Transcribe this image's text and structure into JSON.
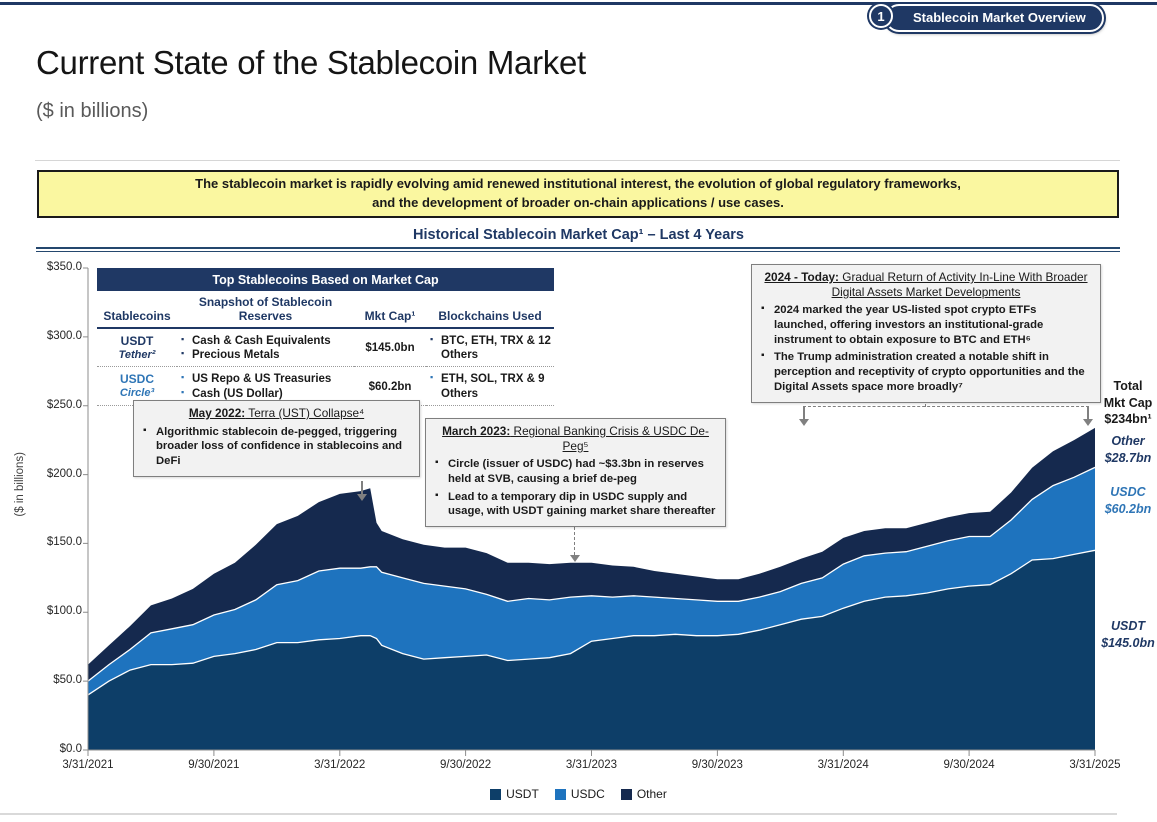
{
  "badge": {
    "number": "1",
    "label": "Stablecoin Market Overview"
  },
  "header": {
    "title": "Current State of the Stablecoin Market",
    "subtitle": "($ in billions)"
  },
  "highlight": {
    "line1": "The stablecoin market is rapidly evolving amid renewed institutional interest, the evolution of global regulatory frameworks,",
    "line2": "and the development of broader on-chain applications / use cases."
  },
  "chart_header": {
    "title": "Historical Stablecoin Market Cap¹ – Last 4 Years"
  },
  "table": {
    "title": "Top Stablecoins Based on Market Cap",
    "columns": [
      "Stablecoins",
      "Snapshot of Stablecoin Reserves",
      "Mkt Cap¹",
      "Blockchains Used"
    ],
    "rows": [
      {
        "name": "USDT",
        "issuer": "Tether²",
        "reserves": [
          "Cash & Cash Equivalents",
          "Precious Metals"
        ],
        "mkt_cap": "$145.0bn",
        "blockchains": "BTC, ETH, TRX & 12 Others"
      },
      {
        "name": "USDC",
        "issuer": "Circle³",
        "reserves": [
          "US Repo & US Treasuries",
          "Cash (US Dollar)"
        ],
        "mkt_cap": "$60.2bn",
        "blockchains": "ETH, SOL, TRX & 9 Others"
      }
    ]
  },
  "annotations": {
    "may2022": {
      "title_bold": "May 2022:",
      "title_rest": " Terra (UST) Collapse⁴",
      "bullets": [
        "Algorithmic stablecoin de-pegged, triggering broader loss of confidence in stablecoins and DeFi"
      ]
    },
    "march2023": {
      "title_bold": "March 2023:",
      "title_rest": " Regional Banking Crisis & USDC De-Peg⁵",
      "bullets": [
        "Circle (issuer of USDC) had ~$3.3bn in reserves held at SVB, causing a brief de-peg",
        "Lead to a temporary dip in USDC supply and usage, with USDT gaining market share thereafter"
      ]
    },
    "today2024": {
      "title_bold": "2024 - Today:",
      "title_rest": " Gradual Return of Activity In-Line With Broader Digital Assets Market Developments",
      "bullets": [
        "2024 marked the year US-listed spot crypto ETFs launched, offering investors an institutional-grade instrument to obtain exposure to BTC and ETH⁶",
        "The Trump administration created a notable shift in perception and receptivity of crypto opportunities and the Digital Assets space more broadly⁷"
      ]
    }
  },
  "side_labels": {
    "total": {
      "l1": "Total",
      "l2": "Mkt Cap",
      "l3": "$234bn¹"
    },
    "other": {
      "name": "Other",
      "value": "$28.7bn"
    },
    "usdc": {
      "name": "USDC",
      "value": "$60.2bn"
    },
    "usdt": {
      "name": "USDT",
      "value": "$145.0bn"
    }
  },
  "chart_data": {
    "type": "area",
    "stacked": true,
    "title": "Historical Stablecoin Market Cap – Last 4 Years",
    "ylabel": "($ in billions)",
    "ylim": [
      0,
      350
    ],
    "grid": false,
    "legend_position": "bottom",
    "legend": [
      "USDT",
      "USDC",
      "Other"
    ],
    "y_ticks": [
      {
        "label": "$350.0",
        "value": 350
      },
      {
        "label": "$300.0",
        "value": 300
      },
      {
        "label": "$250.0",
        "value": 250
      },
      {
        "label": "$200.0",
        "value": 200
      },
      {
        "label": "$150.0",
        "value": 150
      },
      {
        "label": "$100.0",
        "value": 100
      },
      {
        "label": "$50.0",
        "value": 50
      },
      {
        "label": "$0.0",
        "value": 0
      }
    ],
    "x_ticks": [
      "3/31/2021",
      "9/30/2021",
      "3/31/2022",
      "9/30/2022",
      "3/31/2023",
      "9/30/2023",
      "3/31/2024",
      "9/30/2024",
      "3/31/2025"
    ],
    "x_months": [
      0,
      1,
      2,
      3,
      4,
      5,
      6,
      7,
      8,
      9,
      10,
      11,
      12,
      13,
      13.45,
      13.75,
      14,
      15,
      16,
      17,
      18,
      19,
      20,
      21,
      22,
      23,
      24,
      25,
      26,
      27,
      28,
      29,
      30,
      31,
      32,
      33,
      34,
      35,
      36,
      37,
      38,
      39,
      40,
      41,
      42,
      43,
      44,
      45,
      46,
      47,
      48
    ],
    "x_range_months": [
      0,
      48
    ],
    "series": [
      {
        "name": "USDT",
        "color": "#0d3e68",
        "values": [
          40,
          50,
          58,
          62,
          62,
          63,
          68,
          70,
          73,
          78,
          78,
          80,
          81,
          83,
          83,
          81,
          76,
          70,
          66,
          67,
          68,
          69,
          65,
          66,
          67,
          70,
          79,
          81,
          83,
          83,
          84,
          83,
          83,
          84,
          87,
          91,
          95,
          97,
          103,
          108,
          111,
          112,
          114,
          117,
          119,
          120,
          128,
          138,
          139,
          142,
          145
        ]
      },
      {
        "name": "USDC",
        "color": "#1e73be",
        "values": [
          10,
          12,
          15,
          23,
          26,
          28,
          30,
          32,
          36,
          42,
          45,
          50,
          51,
          49,
          50,
          52,
          53,
          55,
          55,
          52,
          49,
          44,
          43,
          44,
          42,
          41,
          33,
          30,
          29,
          28,
          26,
          26,
          25,
          24,
          24,
          24,
          26,
          28,
          32,
          33,
          32,
          32,
          34,
          35,
          36,
          35,
          39,
          44,
          53,
          56,
          60.2
        ]
      },
      {
        "name": "Other",
        "color": "#15294e",
        "values": [
          12,
          14,
          17,
          20,
          22,
          26,
          30,
          34,
          40,
          44,
          47,
          50,
          54,
          56,
          57,
          32,
          30,
          28,
          28,
          28,
          30,
          30,
          28,
          26,
          26,
          25,
          24,
          23,
          21,
          19,
          18,
          17,
          16,
          16,
          17,
          18,
          18,
          19,
          19,
          18,
          18,
          17,
          17,
          17,
          17,
          18,
          20,
          23,
          25,
          27,
          28.7
        ]
      }
    ],
    "end_values": {
      "total": "$234bn¹",
      "usdt": "$145.0bn",
      "usdc": "$60.2bn",
      "other": "$28.7bn"
    }
  }
}
